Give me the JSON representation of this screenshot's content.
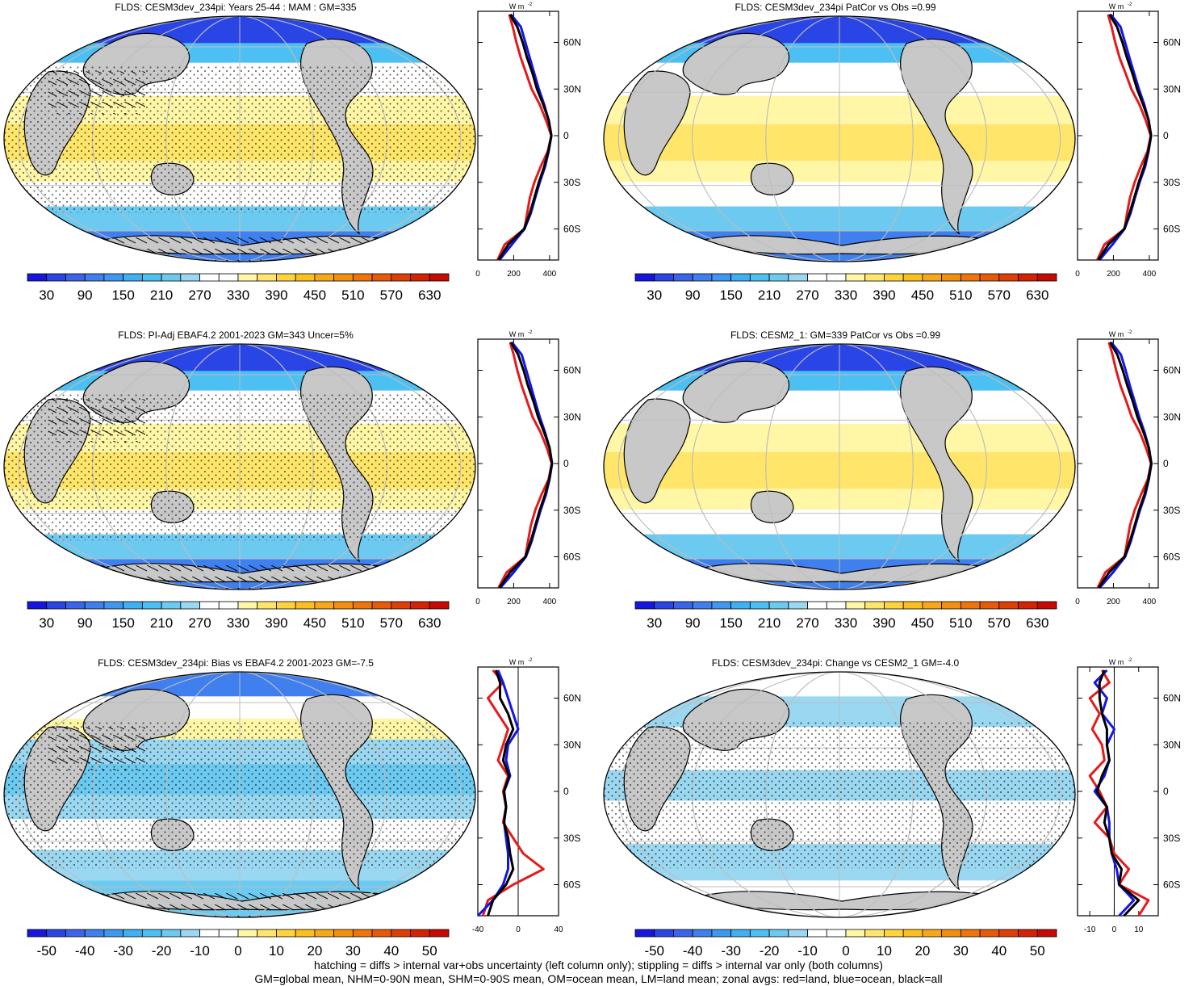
{
  "panels": [
    {
      "id": "p1",
      "title": "FLDS: CESM3dev_234pi: Years 25-44 : MAM : GM=335",
      "kind": "abs",
      "stipple": true,
      "hatch": true
    },
    {
      "id": "p2",
      "title": "FLDS: CESM3dev_234pi PatCor vs Obs =0.99",
      "kind": "abs",
      "stipple": false,
      "hatch": false
    },
    {
      "id": "p3",
      "title": "FLDS: PI-Adj EBAF4.2 2001-2023 GM=343 Uncer=5%",
      "kind": "abs",
      "stipple": true,
      "hatch": true
    },
    {
      "id": "p4",
      "title": "FLDS: CESM2_1: GM=339 PatCor vs Obs =0.99",
      "kind": "abs",
      "stipple": false,
      "hatch": false
    },
    {
      "id": "p5",
      "title": "FLDS: CESM3dev_234pi: Bias vs EBAF4.2 2001-2023 GM=-7.5",
      "kind": "diff",
      "stipple": true,
      "hatch": true
    },
    {
      "id": "p6",
      "title": "FLDS: CESM3dev_234pi: Change vs CESM2_1 GM=-4.0",
      "kind": "diff",
      "stipple": true,
      "hatch": false
    }
  ],
  "colorbars": {
    "abs": {
      "labels": [
        "30",
        "90",
        "150",
        "210",
        "270",
        "330",
        "390",
        "450",
        "510",
        "570",
        "630"
      ],
      "colors": [
        "#1616e0",
        "#2a45e6",
        "#3a64ea",
        "#3f7fee",
        "#3e98f0",
        "#3fb0f2",
        "#4cc0f2",
        "#6ccaf0",
        "#9ad8f2",
        "#ffffff",
        "#ffffff",
        "#fff6a6",
        "#ffe66a",
        "#ffd43a",
        "#fcc01c",
        "#f8a814",
        "#f48f0e",
        "#ef7509",
        "#e85a07",
        "#df3e05",
        "#d62203",
        "#c80a02"
      ]
    },
    "diff": {
      "labels": [
        "-50",
        "-40",
        "-30",
        "-20",
        "-10",
        "0",
        "10",
        "20",
        "30",
        "40",
        "50"
      ],
      "colors": [
        "#1616e0",
        "#2a45e6",
        "#3a64ea",
        "#3f7fee",
        "#3e98f0",
        "#3fb0f2",
        "#4cc0f2",
        "#6ccaf0",
        "#9ad8f2",
        "#ffffff",
        "#ffffff",
        "#fff6a6",
        "#ffe66a",
        "#ffd43a",
        "#fcc01c",
        "#f8a814",
        "#f48f0e",
        "#ef7509",
        "#e85a07",
        "#df3e05",
        "#d62203",
        "#c80a02"
      ]
    }
  },
  "zonal_axis": {
    "unit": "W m",
    "unit_sup": "-2",
    "lat_labels": [
      "60N",
      "30N",
      "0",
      "30S",
      "60S"
    ],
    "lat_values": [
      60,
      30,
      0,
      -30,
      -60
    ],
    "abs_ticks": [
      "0",
      "200",
      "400"
    ],
    "abs_tick_values": [
      0,
      200,
      400
    ],
    "diff_ticks_left": [
      "-40",
      "0",
      "40"
    ],
    "diff_ticks_left_values": [
      -40,
      0,
      40
    ],
    "diff_ticks_right": [
      "-10",
      "0",
      "10"
    ],
    "diff_ticks_right_values": [
      -10,
      0,
      10
    ]
  },
  "series_colors": {
    "land": "#e41a1c",
    "ocean": "#1414e6",
    "all": "#000000"
  },
  "chart_data": [
    {
      "type": "line",
      "panel": "p1",
      "x_label": "",
      "ylim": [
        -80,
        80
      ],
      "xlim": [
        0,
        450
      ],
      "series": [
        {
          "color": "land",
          "lat": [
            78,
            70,
            60,
            50,
            40,
            30,
            20,
            10,
            0,
            -10,
            -20,
            -30,
            -40,
            -50,
            -60,
            -70,
            -80
          ],
          "values": [
            175,
            195,
            215,
            240,
            270,
            300,
            345,
            380,
            410,
            390,
            350,
            315,
            290,
            275,
            260,
            150,
            110
          ]
        },
        {
          "color": "ocean",
          "lat": [
            78,
            70,
            60,
            50,
            40,
            30,
            20,
            10,
            0,
            -10,
            -20,
            -30,
            -40,
            -50,
            -60,
            -70,
            -80
          ],
          "values": [
            185,
            240,
            265,
            290,
            315,
            340,
            370,
            395,
            410,
            395,
            375,
            345,
            320,
            295,
            260,
            190,
            120
          ]
        },
        {
          "color": "all",
          "lat": [
            78,
            70,
            60,
            50,
            40,
            30,
            20,
            10,
            0,
            -10,
            -20,
            -30,
            -40,
            -50,
            -60,
            -70,
            -80
          ],
          "values": [
            180,
            220,
            250,
            275,
            305,
            330,
            365,
            395,
            410,
            393,
            370,
            340,
            315,
            290,
            258,
            170,
            115
          ]
        }
      ]
    },
    {
      "type": "line",
      "panel": "p2",
      "x_label": "",
      "ylim": [
        -80,
        80
      ],
      "xlim": [
        0,
        450
      ],
      "series": [
        {
          "color": "land",
          "lat": [
            78,
            70,
            60,
            50,
            40,
            30,
            20,
            10,
            0,
            -10,
            -20,
            -30,
            -40,
            -50,
            -60,
            -70,
            -80
          ],
          "values": [
            170,
            190,
            210,
            235,
            268,
            300,
            345,
            380,
            408,
            390,
            352,
            318,
            292,
            276,
            262,
            150,
            110
          ]
        },
        {
          "color": "ocean",
          "lat": [
            78,
            70,
            60,
            50,
            40,
            30,
            20,
            10,
            0,
            -10,
            -20,
            -30,
            -40,
            -50,
            -60,
            -70,
            -80
          ],
          "values": [
            185,
            240,
            265,
            290,
            316,
            342,
            372,
            396,
            410,
            396,
            377,
            346,
            320,
            295,
            262,
            195,
            122
          ]
        },
        {
          "color": "all",
          "lat": [
            78,
            70,
            60,
            50,
            40,
            30,
            20,
            10,
            0,
            -10,
            -20,
            -30,
            -40,
            -50,
            -60,
            -70,
            -80
          ],
          "values": [
            178,
            220,
            250,
            276,
            306,
            332,
            366,
            396,
            410,
            394,
            371,
            341,
            316,
            290,
            260,
            172,
            116
          ]
        }
      ]
    },
    {
      "type": "line",
      "panel": "p3",
      "x_label": "",
      "ylim": [
        -80,
        80
      ],
      "xlim": [
        0,
        450
      ],
      "series": [
        {
          "color": "land",
          "lat": [
            78,
            70,
            60,
            50,
            40,
            30,
            20,
            10,
            0,
            -10,
            -20,
            -30,
            -40,
            -50,
            -60,
            -70,
            -80
          ],
          "values": [
            180,
            200,
            220,
            245,
            275,
            305,
            350,
            385,
            412,
            395,
            355,
            320,
            295,
            280,
            265,
            160,
            115
          ]
        },
        {
          "color": "ocean",
          "lat": [
            78,
            70,
            60,
            50,
            40,
            30,
            20,
            10,
            0,
            -10,
            -20,
            -30,
            -40,
            -50,
            -60,
            -70,
            -80
          ],
          "values": [
            190,
            245,
            270,
            295,
            320,
            345,
            375,
            400,
            414,
            400,
            380,
            350,
            325,
            300,
            268,
            200,
            125
          ]
        },
        {
          "color": "all",
          "lat": [
            78,
            70,
            60,
            50,
            40,
            30,
            20,
            10,
            0,
            -10,
            -20,
            -30,
            -40,
            -50,
            -60,
            -70,
            -80
          ],
          "values": [
            185,
            225,
            255,
            280,
            310,
            336,
            370,
            400,
            413,
            398,
            375,
            345,
            320,
            295,
            265,
            180,
            120
          ]
        }
      ]
    },
    {
      "type": "line",
      "panel": "p4",
      "x_label": "",
      "ylim": [
        -80,
        80
      ],
      "xlim": [
        0,
        450
      ],
      "series": [
        {
          "color": "land",
          "lat": [
            78,
            70,
            60,
            50,
            40,
            30,
            20,
            10,
            0,
            -10,
            -20,
            -30,
            -40,
            -50,
            -60,
            -70,
            -80
          ],
          "values": [
            175,
            195,
            215,
            240,
            272,
            302,
            348,
            382,
            410,
            392,
            354,
            318,
            292,
            277,
            262,
            155,
            112
          ]
        },
        {
          "color": "ocean",
          "lat": [
            78,
            70,
            60,
            50,
            40,
            30,
            20,
            10,
            0,
            -10,
            -20,
            -30,
            -40,
            -50,
            -60,
            -70,
            -80
          ],
          "values": [
            188,
            242,
            268,
            292,
            318,
            344,
            374,
            398,
            412,
            398,
            378,
            348,
            322,
            297,
            265,
            198,
            123
          ]
        },
        {
          "color": "all",
          "lat": [
            78,
            70,
            60,
            50,
            40,
            30,
            20,
            10,
            0,
            -10,
            -20,
            -30,
            -40,
            -50,
            -60,
            -70,
            -80
          ],
          "values": [
            182,
            222,
            252,
            278,
            308,
            334,
            368,
            398,
            411,
            396,
            373,
            343,
            318,
            292,
            262,
            176,
            118
          ]
        }
      ]
    },
    {
      "type": "line",
      "panel": "p5",
      "x_label": "",
      "ylim": [
        -80,
        80
      ],
      "xlim": [
        -40,
        40
      ],
      "series": [
        {
          "color": "land",
          "lat": [
            78,
            70,
            60,
            50,
            40,
            30,
            20,
            10,
            0,
            -10,
            -20,
            -30,
            -40,
            -50,
            -60,
            -70,
            -80
          ],
          "values": [
            -25,
            -15,
            -30,
            -20,
            -10,
            -15,
            -20,
            -10,
            -15,
            -12,
            -15,
            -5,
            5,
            25,
            -5,
            -30,
            -35
          ]
        },
        {
          "color": "ocean",
          "lat": [
            78,
            70,
            60,
            50,
            40,
            30,
            20,
            10,
            0,
            -10,
            -20,
            -30,
            -40,
            -50,
            -60,
            -70,
            -80
          ],
          "values": [
            -20,
            -15,
            -10,
            -5,
            0,
            -10,
            -12,
            -8,
            -14,
            -12,
            -14,
            -12,
            -10,
            -10,
            -15,
            -25,
            -40
          ]
        },
        {
          "color": "all",
          "lat": [
            78,
            70,
            60,
            50,
            40,
            30,
            20,
            10,
            0,
            -10,
            -20,
            -30,
            -40,
            -50,
            -60,
            -70,
            -80
          ],
          "values": [
            -22,
            -18,
            -18,
            -10,
            -5,
            -12,
            -15,
            -9,
            -14,
            -12,
            -14,
            -10,
            -8,
            -5,
            -12,
            -25,
            -30
          ]
        }
      ]
    },
    {
      "type": "line",
      "panel": "p6",
      "x_label": "",
      "ylim": [
        -80,
        80
      ],
      "xlim": [
        -15,
        18
      ],
      "series": [
        {
          "color": "land",
          "lat": [
            78,
            70,
            60,
            50,
            40,
            30,
            20,
            10,
            0,
            -10,
            -20,
            -30,
            -40,
            -50,
            -60,
            -70,
            -80
          ],
          "values": [
            -5,
            -2,
            -10,
            -6,
            -9,
            -5,
            -4,
            -10,
            -6,
            -3,
            -8,
            -2,
            0,
            6,
            2,
            14,
            10
          ]
        },
        {
          "color": "ocean",
          "lat": [
            78,
            70,
            60,
            50,
            40,
            30,
            20,
            10,
            0,
            -10,
            -20,
            -30,
            -40,
            -50,
            -60,
            -70,
            -80
          ],
          "values": [
            -3,
            -8,
            -3,
            -5,
            0,
            -3,
            -2,
            -4,
            -8,
            -3,
            -2,
            -2,
            -1,
            1,
            2,
            8,
            2
          ]
        },
        {
          "color": "all",
          "lat": [
            78,
            70,
            60,
            50,
            40,
            30,
            20,
            10,
            0,
            -10,
            -20,
            -30,
            -40,
            -50,
            -60,
            -70,
            -80
          ],
          "values": [
            -4,
            -6,
            -6,
            -5,
            -3,
            -3,
            -2,
            -5,
            -7,
            -3,
            -4,
            -2,
            -1,
            3,
            2,
            10,
            4
          ]
        }
      ]
    }
  ],
  "footer": {
    "line1": "hatching = diffs > internal var+obs uncertainty (left column only); stippling = diffs > internal var only (both columns)",
    "line2": "GM=global mean, NHM=0-90N mean, SHM=0-90S mean, OM=ocean mean, LM=land mean; zonal avgs: red=land, blue=ocean, black=all"
  }
}
